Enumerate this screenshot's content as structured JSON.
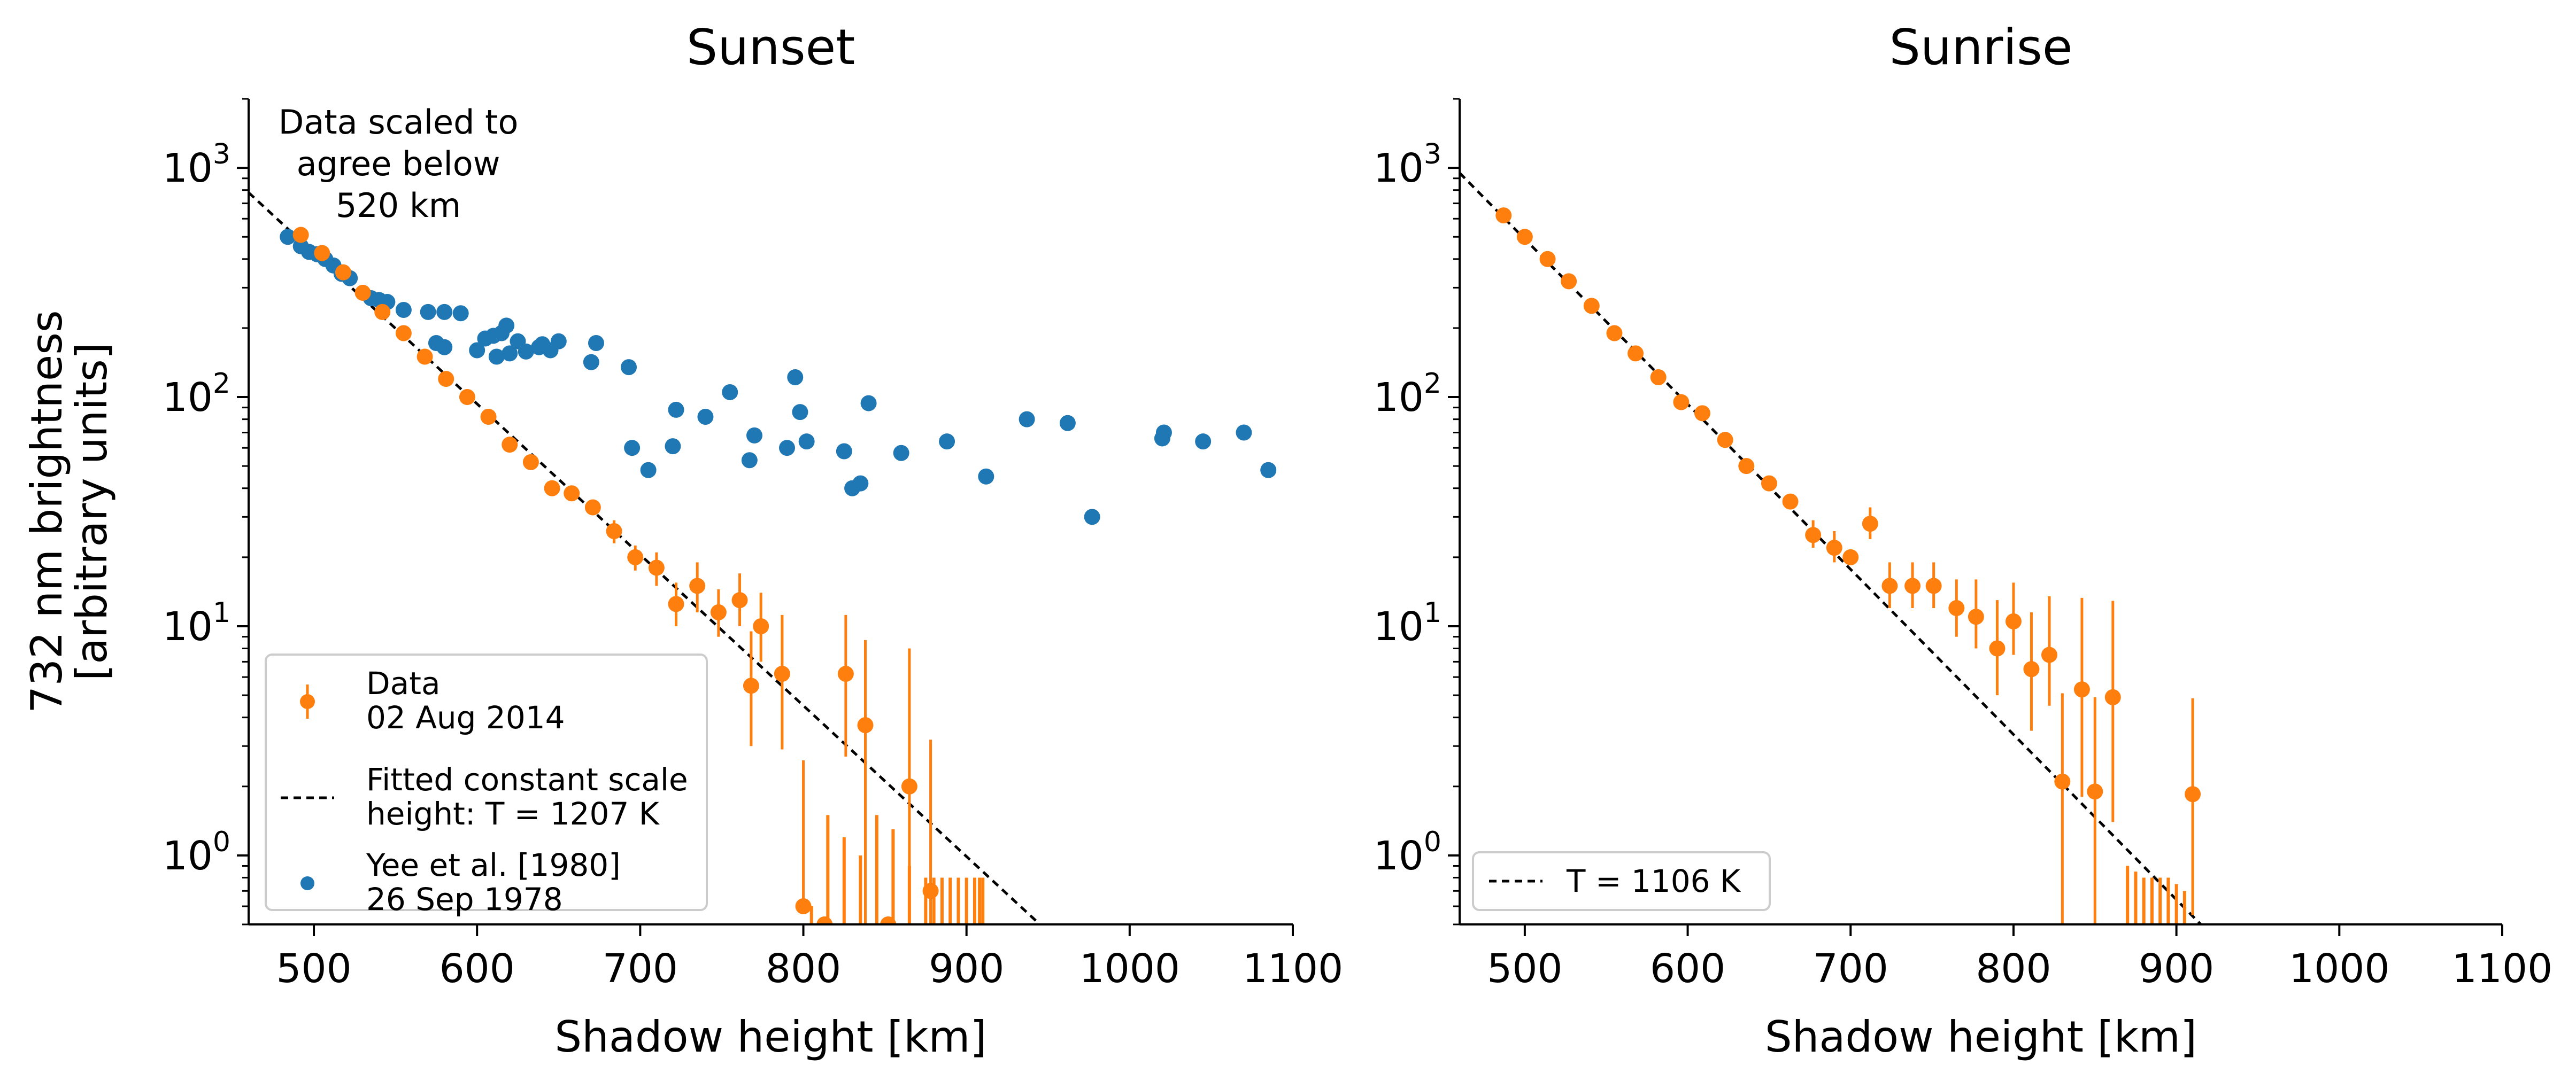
{
  "colors": {
    "data": "#ff7f0e",
    "yee": "#1f77b4",
    "fit": "#000000",
    "axis": "#000000"
  },
  "chart_data": [
    {
      "type": "scatter",
      "title": "Sunset",
      "xlabel": "Shadow height [km]",
      "ylabel": [
        "732 nm brightness",
        "[arbitrary units]"
      ],
      "xlim": [
        460,
        1100
      ],
      "ylim": [
        0.5,
        2000
      ],
      "yscale": "log",
      "xticks": [
        500,
        600,
        700,
        800,
        900,
        1000,
        1100
      ],
      "xtick_labels": [
        "500",
        "600",
        "700",
        "800",
        "900",
        "1000",
        "1100"
      ],
      "yticks": [
        1,
        10,
        100,
        1000
      ],
      "ytick_labels": [
        {
          "base": "10",
          "exp": "0"
        },
        {
          "base": "10",
          "exp": "1"
        },
        {
          "base": "10",
          "exp": "2"
        },
        {
          "base": "10",
          "exp": "3"
        }
      ],
      "annotation": [
        "Data scaled to",
        "agree below",
        "520 km"
      ],
      "legend": {
        "location": "lower-left",
        "entries": [
          {
            "series": "data",
            "lines": [
              "Data",
              "02 Aug 2014"
            ]
          },
          {
            "series": "fit",
            "lines": [
              "Fitted constant scale",
              "height: T = 1207 K"
            ]
          },
          {
            "series": "yee",
            "lines": [
              "Yee et al. [1980]",
              "26 Sep 1978"
            ]
          }
        ]
      },
      "fit": {
        "x": [
          460,
          945
        ],
        "y": [
          780,
          0.5
        ]
      },
      "series": [
        {
          "key": "yee",
          "x": [
            484,
            492,
            497,
            502,
            507,
            512,
            517,
            522,
            535,
            540,
            545,
            555,
            570,
            580,
            590,
            575,
            580,
            600,
            605,
            610,
            612,
            615,
            618,
            620,
            625,
            630,
            638,
            640,
            645,
            650,
            670,
            673,
            693,
            695,
            705,
            720,
            722,
            740,
            755,
            767,
            770,
            790,
            795,
            798,
            802,
            825,
            830,
            835,
            840,
            860,
            888,
            912,
            937,
            962,
            977,
            1020,
            1021,
            1045,
            1070,
            1085
          ],
          "y": [
            500,
            455,
            430,
            420,
            400,
            375,
            345,
            330,
            270,
            265,
            260,
            240,
            235,
            235,
            232,
            172,
            165,
            160,
            180,
            185,
            150,
            190,
            205,
            155,
            175,
            158,
            165,
            170,
            160,
            175,
            142,
            172,
            135,
            60,
            48,
            61,
            88,
            82,
            105,
            53,
            68,
            60,
            122,
            86,
            64,
            58,
            40,
            42,
            94,
            57,
            64,
            45,
            80,
            77,
            30,
            66,
            70,
            64,
            70,
            48
          ]
        },
        {
          "key": "data",
          "x": [
            492,
            505,
            518,
            530,
            542,
            555,
            568,
            581,
            594,
            607,
            620,
            633,
            646,
            658,
            671,
            684,
            697,
            710,
            722,
            735,
            748,
            761,
            768,
            774,
            787,
            800,
            813,
            826,
            838,
            852,
            865,
            878
          ],
          "y": [
            510,
            425,
            350,
            285,
            235,
            190,
            150,
            120,
            100,
            82,
            62,
            52,
            40,
            38,
            33,
            26,
            20,
            18,
            12.5,
            15,
            11.5,
            13,
            5.5,
            10,
            6.2,
            0.6,
            0.5,
            6.2,
            3.7,
            0.5,
            2.0,
            0.7
          ],
          "yerr_low": [
            0,
            0,
            0,
            0,
            0,
            0,
            0,
            0,
            0,
            0,
            0,
            0,
            0,
            0,
            0,
            3,
            2.5,
            3,
            2.5,
            3.5,
            2.5,
            3,
            2.5,
            3,
            3.3,
            0,
            0,
            3.5,
            3.2,
            0,
            1.5,
            0.2
          ],
          "yerr_high": [
            0,
            0,
            0,
            0,
            0,
            0,
            0,
            0,
            0,
            0,
            0,
            0,
            0,
            0,
            0,
            3,
            2.5,
            3,
            3,
            4,
            3,
            4,
            4,
            4,
            5,
            2,
            0,
            5,
            5,
            0,
            6,
            2.5
          ]
        }
      ],
      "censored_bars": {
        "x": [
          805,
          815,
          825,
          835,
          845,
          855,
          865,
          875,
          880,
          885,
          890,
          895,
          900,
          905,
          908,
          910
        ],
        "top": [
          0.6,
          1.5,
          1.2,
          1.0,
          1.5,
          1.3,
          0.9,
          0.8,
          0.8,
          0.8,
          0.8,
          0.8,
          0.8,
          0.8,
          0.8,
          0.8
        ]
      }
    },
    {
      "type": "scatter",
      "title": "Sunrise",
      "xlabel": "Shadow height [km]",
      "xlim": [
        460,
        1100
      ],
      "ylim": [
        0.5,
        2000
      ],
      "yscale": "log",
      "xticks": [
        500,
        600,
        700,
        800,
        900,
        1000,
        1100
      ],
      "xtick_labels": [
        "500",
        "600",
        "700",
        "800",
        "900",
        "1000",
        "1100"
      ],
      "yticks": [
        1,
        10,
        100,
        1000
      ],
      "ytick_labels": [
        {
          "base": "10",
          "exp": "0"
        },
        {
          "base": "10",
          "exp": "1"
        },
        {
          "base": "10",
          "exp": "2"
        },
        {
          "base": "10",
          "exp": "3"
        }
      ],
      "legend": {
        "location": "lower-left",
        "entries": [
          {
            "series": "fit",
            "lines": [
              "T = 1106 K"
            ]
          }
        ]
      },
      "fit": {
        "x": [
          460,
          915
        ],
        "y": [
          950,
          0.5
        ]
      },
      "series": [
        {
          "key": "data",
          "x": [
            487,
            500,
            514,
            527,
            541,
            555,
            568,
            582,
            596,
            609,
            623,
            636,
            650,
            663,
            677,
            690,
            700,
            712,
            724,
            738,
            751,
            765,
            777,
            790,
            800,
            811,
            822,
            830,
            842,
            850,
            861,
            910
          ],
          "y": [
            620,
            500,
            400,
            320,
            250,
            190,
            155,
            122,
            95,
            85,
            65,
            50,
            42,
            35,
            25,
            22,
            20,
            28,
            15,
            15,
            15,
            12,
            11,
            8,
            10.5,
            6.5,
            7.5,
            2.1,
            5.3,
            1.9,
            4.9,
            1.85
          ],
          "yerr_low": [
            0,
            0,
            0,
            0,
            0,
            0,
            0,
            0,
            0,
            0,
            0,
            0,
            0,
            0,
            3,
            3,
            0,
            4,
            3,
            3,
            3,
            3,
            3,
            3,
            3,
            3,
            3,
            1.6,
            3.5,
            1.4,
            3.5,
            1.3
          ],
          "yerr_high": [
            0,
            0,
            0,
            0,
            0,
            0,
            0,
            0,
            0,
            0,
            0,
            0,
            0,
            0,
            4,
            4,
            0,
            5,
            4,
            4,
            4,
            4,
            5,
            5,
            5,
            5,
            6,
            3,
            8,
            3,
            8,
            3
          ]
        }
      ],
      "censored_bars": {
        "x": [
          870,
          875,
          880,
          885,
          890,
          895,
          900,
          905
        ],
        "top": [
          0.9,
          0.85,
          0.8,
          0.8,
          0.8,
          0.8,
          0.75,
          0.7
        ]
      }
    }
  ]
}
